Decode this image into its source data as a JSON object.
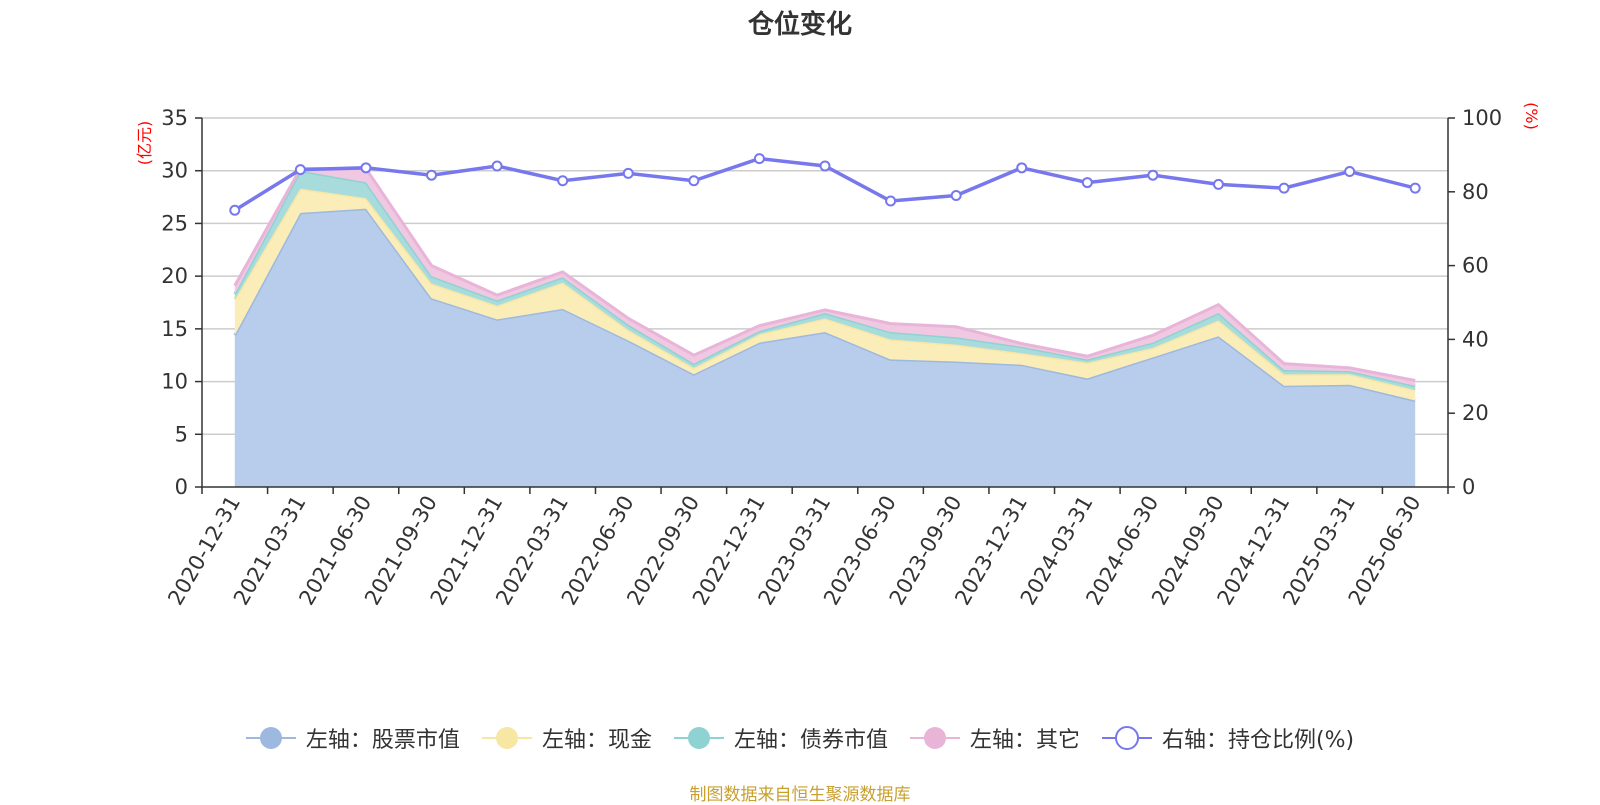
{
  "title": "仓位变化",
  "source_note": "制图数据来自恒生聚源数据库",
  "chart_data": {
    "type": "area",
    "stacked": true,
    "title": "仓位变化",
    "left_axis": {
      "unit": "(亿元)",
      "ylim": [
        0,
        35
      ],
      "ticks": [
        0,
        5,
        10,
        15,
        20,
        25,
        30,
        35
      ]
    },
    "right_axis": {
      "unit": "(%)",
      "ylim": [
        0,
        100
      ],
      "ticks": [
        0,
        20,
        40,
        60,
        80,
        100
      ]
    },
    "grid": true,
    "legend_position": "bottom",
    "categories": [
      "2020-12-31",
      "2021-03-31",
      "2021-06-30",
      "2021-09-30",
      "2021-12-31",
      "2022-03-31",
      "2022-06-30",
      "2022-09-30",
      "2022-12-31",
      "2023-03-31",
      "2023-06-30",
      "2023-09-30",
      "2023-12-31",
      "2024-03-31",
      "2024-06-30",
      "2024-09-30",
      "2024-12-31",
      "2025-03-31",
      "2025-06-30"
    ],
    "series": [
      {
        "name": "左轴：股票市值",
        "axis": "left",
        "kind": "area",
        "color": "#9db9e0",
        "fill": "#b8cceb",
        "values": [
          14.4,
          26.0,
          26.4,
          17.9,
          15.9,
          16.9,
          13.9,
          10.7,
          13.7,
          14.7,
          12.1,
          11.9,
          11.6,
          10.3,
          12.3,
          14.3,
          9.6,
          9.7,
          8.2
        ]
      },
      {
        "name": "左轴：现金",
        "axis": "left",
        "kind": "area",
        "color": "#f7e6a4",
        "fill": "#faedb8",
        "values": [
          3.4,
          2.3,
          1.0,
          1.4,
          1.3,
          2.5,
          1.0,
          0.6,
          0.8,
          1.3,
          1.9,
          1.6,
          1.1,
          1.5,
          0.9,
          1.5,
          1.1,
          1.0,
          1.0
        ]
      },
      {
        "name": "左轴：债券市值",
        "axis": "left",
        "kind": "area",
        "color": "#8ed2d2",
        "fill": "#a8dcdc",
        "values": [
          0.5,
          1.7,
          1.5,
          0.7,
          0.5,
          0.5,
          0.5,
          0.4,
          0.3,
          0.5,
          0.7,
          0.7,
          0.6,
          0.3,
          0.5,
          0.7,
          0.4,
          0.3,
          0.4
        ]
      },
      {
        "name": "左轴：其它",
        "axis": "left",
        "kind": "area",
        "color": "#e8b4d8",
        "fill": "#f0c8e2",
        "values": [
          0.8,
          0.2,
          1.3,
          1.0,
          0.5,
          0.5,
          0.6,
          0.8,
          0.5,
          0.3,
          0.8,
          1.0,
          0.3,
          0.3,
          0.7,
          0.8,
          0.6,
          0.3,
          0.5
        ]
      },
      {
        "name": "右轴：持仓比例(%)",
        "axis": "right",
        "kind": "line",
        "color": "#7777ee",
        "values": [
          75,
          86,
          86.5,
          84.5,
          87,
          83,
          85,
          83,
          89,
          87,
          77.5,
          79,
          86.5,
          82.5,
          84.5,
          82,
          81,
          85.5,
          81
        ]
      }
    ]
  }
}
